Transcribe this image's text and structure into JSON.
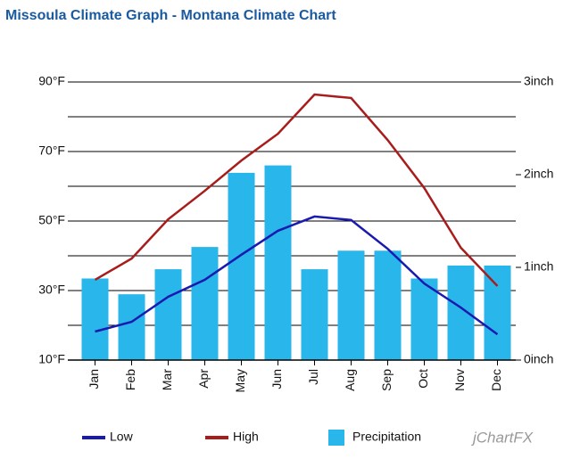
{
  "chart_data": {
    "type": "line",
    "title": "Missoula Climate Graph - Montana Climate Chart",
    "categories": [
      "Jan",
      "Feb",
      "Mar",
      "Apr",
      "May",
      "Jun",
      "Jul",
      "Aug",
      "Sep",
      "Oct",
      "Nov",
      "Dec"
    ],
    "series": [
      {
        "name": "Low",
        "color": "#1a1ab0",
        "type": "line",
        "values": [
          18.2,
          21,
          28.2,
          33.1,
          40.3,
          47.2,
          51.3,
          50.3,
          42,
          32,
          25.1,
          17.4
        ]
      },
      {
        "name": "High",
        "color": "#a81c1c",
        "type": "line",
        "values": [
          33.1,
          39.2,
          50.5,
          58.7,
          67.4,
          75.1,
          86.4,
          85.4,
          73.3,
          59.5,
          42.3,
          31.3
        ]
      },
      {
        "name": "Precipitation",
        "color": "#29b6ea",
        "type": "bar",
        "axis": "y2",
        "values": [
          0.88,
          0.71,
          0.98,
          1.22,
          2.02,
          2.1,
          0.98,
          1.18,
          1.18,
          0.88,
          1.02,
          1.02
        ]
      }
    ],
    "ylim": [
      10,
      90
    ],
    "yticks": [
      {
        "value": 10,
        "label": "10°F"
      },
      {
        "value": 30,
        "label": "30°F"
      },
      {
        "value": 50,
        "label": "50°F"
      },
      {
        "value": 70,
        "label": "70°F"
      },
      {
        "value": 90,
        "label": "90°F"
      }
    ],
    "minor_yticks": [
      20,
      40,
      60,
      80
    ],
    "y2lim": [
      0,
      3
    ],
    "y2ticks": [
      {
        "value": 0,
        "label": "0inch"
      },
      {
        "value": 1,
        "label": "1inch"
      },
      {
        "value": 2,
        "label": "2inch"
      },
      {
        "value": 3,
        "label": "3inch"
      }
    ],
    "grid": true,
    "watermark": "jChartFX"
  }
}
